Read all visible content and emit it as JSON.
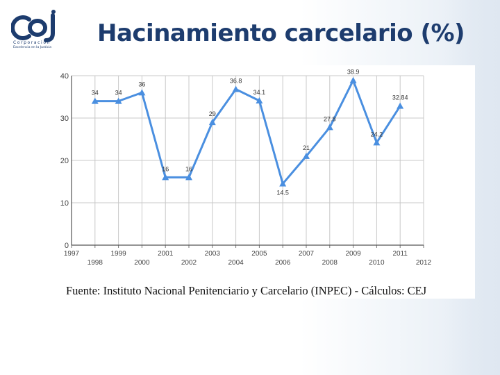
{
  "header": {
    "title": "Hacinamiento carcelario (%)",
    "logo_text": "Corporación",
    "logo_tagline": "Excelencia en la Justicia"
  },
  "colors": {
    "title": "#1d3c6e",
    "series": "#4a8fe0",
    "grid": "#c8c8c8"
  },
  "source": "Fuente: Instituto Nacional Penitenciario y Carcelario (INPEC) - Cálculos: CEJ",
  "chart_data": {
    "type": "line",
    "title": "",
    "xlabel": "",
    "ylabel": "",
    "xlim": [
      1997,
      2012
    ],
    "ylim": [
      0,
      40
    ],
    "yticks": [
      0,
      10,
      20,
      30,
      40
    ],
    "xticks_upper": [
      "1997",
      "1999",
      "2001",
      "2003",
      "2005",
      "2007",
      "2009",
      "2011"
    ],
    "xticks_lower": [
      "1998",
      "2000",
      "2002",
      "2004",
      "2006",
      "2008",
      "2010",
      "2012"
    ],
    "grid": true,
    "series": [
      {
        "x": [
          1998,
          1999,
          2000,
          2001,
          2002,
          2003,
          2004,
          2005,
          2006,
          2007,
          2008,
          2009,
          2010,
          2011
        ],
        "values": [
          34,
          34,
          36,
          16,
          16,
          29,
          36.8,
          34.1,
          14.5,
          21,
          27.8,
          38.9,
          24.2,
          32.84
        ],
        "labels": [
          "34",
          "34",
          "36",
          "16",
          "16",
          "29",
          "36.8",
          "34.1",
          "14.5",
          "21",
          "27.8",
          "38.9",
          "24.2",
          "32.84"
        ]
      }
    ]
  }
}
